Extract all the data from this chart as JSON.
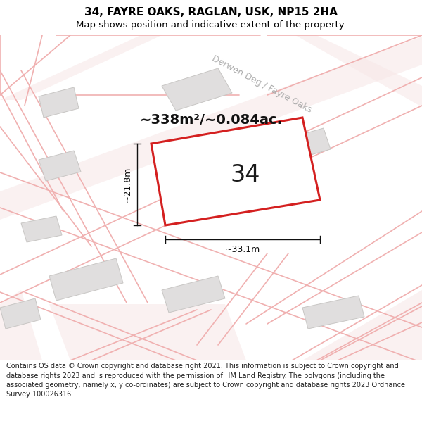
{
  "title": "34, FAYRE OAKS, RAGLAN, USK, NP15 2HA",
  "subtitle": "Map shows position and indicative extent of the property.",
  "area_text": "~338m²/~0.084ac.",
  "plot_number": "34",
  "dim_width": "~33.1m",
  "dim_height": "~21.8m",
  "road_label": "Derwen Deg / Fayre Oaks",
  "footer": "Contains OS data © Crown copyright and database right 2021. This information is subject to Crown copyright and database rights 2023 and is reproduced with the permission of HM Land Registry. The polygons (including the associated geometry, namely x, y co-ordinates) are subject to Crown copyright and database rights 2023 Ordnance Survey 100026316.",
  "bg_color": "#f5f3f0",
  "plot_fill": "#efefef",
  "plot_edge_color": "#d42020",
  "road_line_color": "#f0b0b0",
  "road_fill_color": "#f8e8e8",
  "other_building_fill": "#e0dede",
  "other_building_edge": "#c8c6c4",
  "title_fontsize": 11,
  "subtitle_fontsize": 9.5,
  "area_fontsize": 14,
  "plot_num_fontsize": 24,
  "dim_fontsize": 9,
  "road_label_fontsize": 9,
  "footer_fontsize": 7
}
